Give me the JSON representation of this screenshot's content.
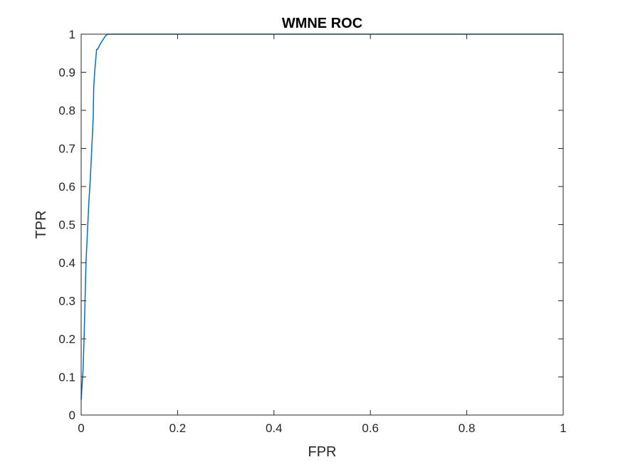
{
  "chart_data": {
    "type": "line",
    "title": "WMNE ROC",
    "xlabel": "FPR",
    "ylabel": "TPR",
    "xlim": [
      0,
      1
    ],
    "ylim": [
      0,
      1
    ],
    "grid": false,
    "legend": "none",
    "xticks": [
      0,
      0.2,
      0.4,
      0.6,
      0.8,
      1
    ],
    "xtick_labels": [
      "0",
      "0.2",
      "0.4",
      "0.6",
      "0.8",
      "1"
    ],
    "yticks": [
      0,
      0.1,
      0.2,
      0.3,
      0.4,
      0.5,
      0.6,
      0.7,
      0.8,
      0.9,
      1
    ],
    "ytick_labels": [
      "0",
      "0.1",
      "0.2",
      "0.3",
      "0.4",
      "0.5",
      "0.6",
      "0.7",
      "0.8",
      "0.9",
      "1"
    ],
    "series": [
      {
        "color": "#0072BD",
        "x": [
          0,
          0.002,
          0.004,
          0.006,
          0.008,
          0.01,
          0.013,
          0.016,
          0.019,
          0.022,
          0.025,
          0.026,
          0.028,
          0.03,
          0.032,
          0.034,
          0.036,
          0.04,
          0.045,
          0.05,
          0.055,
          0.06,
          0.2,
          0.4,
          0.6,
          0.8,
          1.0
        ],
        "y": [
          0.04,
          0.08,
          0.12,
          0.2,
          0.3,
          0.4,
          0.48,
          0.56,
          0.62,
          0.7,
          0.78,
          0.86,
          0.9,
          0.93,
          0.96,
          0.96,
          0.965,
          0.975,
          0.985,
          0.995,
          1.0,
          1.0,
          1.0,
          1.0,
          1.0,
          1.0,
          1.0
        ]
      }
    ]
  },
  "colors": {
    "axis": "#262626",
    "line": "#0072BD",
    "background": "#ffffff"
  }
}
